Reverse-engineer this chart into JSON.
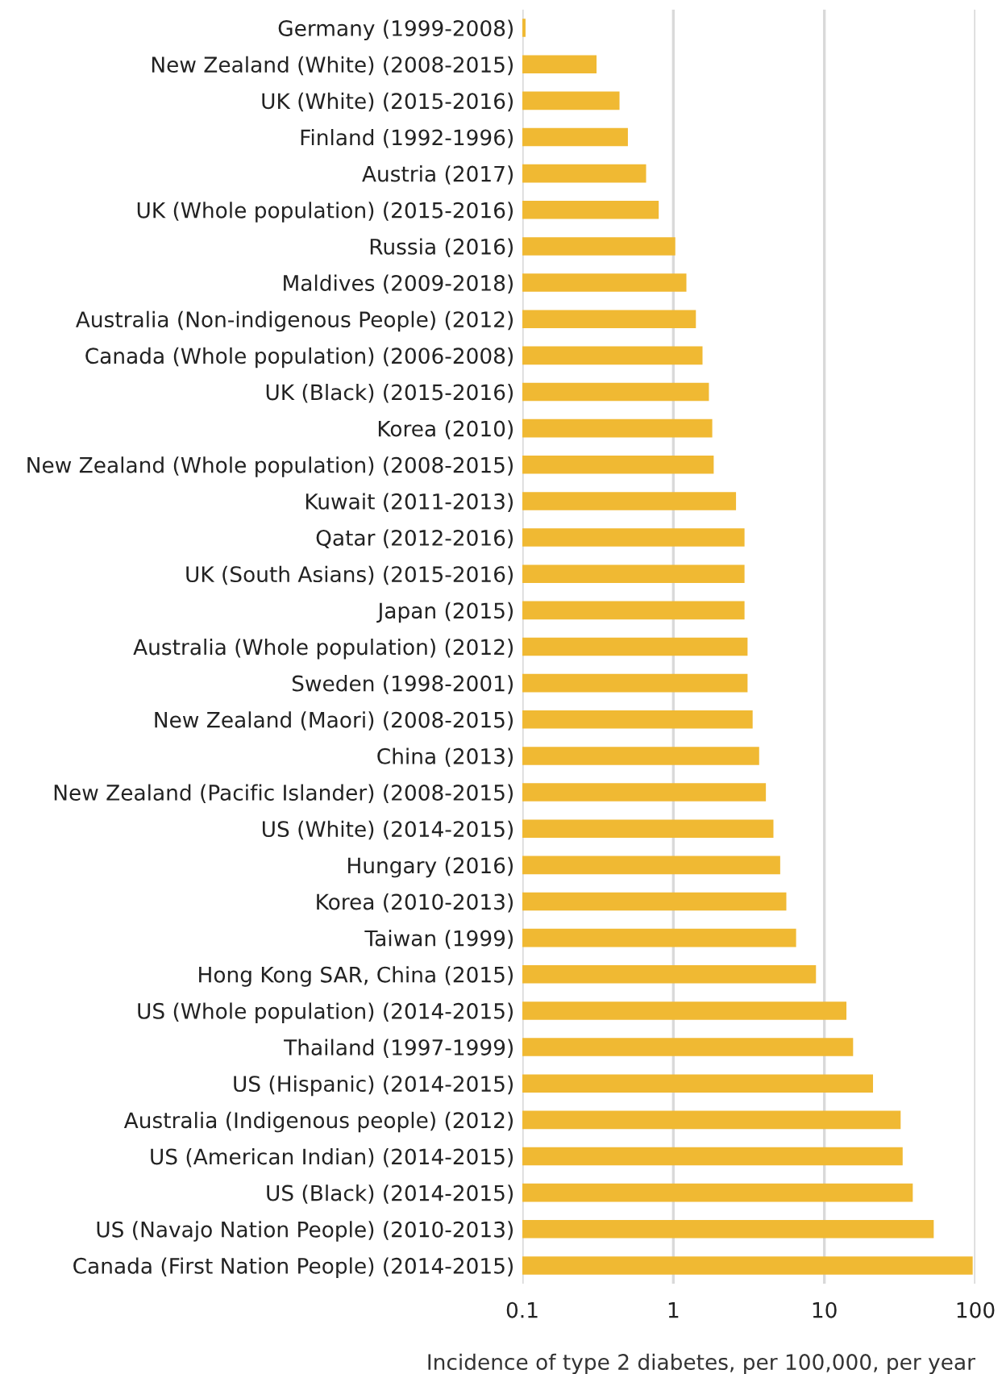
{
  "chart_data": {
    "type": "bar",
    "orientation": "horizontal",
    "xlabel": "Incidence of type 2 diabetes, per 100,000, per year",
    "categories": [
      "Germany (1999-2008)",
      "New Zealand (White) (2008-2015)",
      "UK (White) (2015-2016)",
      "Finland (1992-1996)",
      "Austria (2017)",
      "UK (Whole population) (2015-2016)",
      "Russia (2016)",
      "Maldives (2009-2018)",
      "Australia (Non-indigenous People) (2012)",
      "Canada (Whole population) (2006-2008)",
      "UK (Black) (2015-2016)",
      "Korea (2010)",
      "New Zealand (Whole population) (2008-2015)",
      "Kuwait (2011-2013)",
      "Qatar (2012-2016)",
      "UK (South Asians) (2015-2016)",
      "Japan (2015)",
      "Australia (Whole population) (2012)",
      "Sweden (1998-2001)",
      "New Zealand (Maori) (2008-2015)",
      "China (2013)",
      "New Zealand (Pacific Islander) (2008-2015)",
      "US (White) (2014-2015)",
      "Hungary (2016)",
      "Korea (2010-2013)",
      "Taiwan (1999)",
      "Hong Kong SAR, China (2015)",
      "US (Whole population) (2014-2015)",
      "Thailand (1997-1999)",
      "US (Hispanic) (2014-2015)",
      "Australia (Indigenous people) (2012)",
      "US (American Indian) (2014-2015)",
      "US (Black) (2014-2015)",
      "US (Navajo Nation People) (2010-2013)",
      "Canada (First Nation People) (2014-2015)"
    ],
    "values": [
      0.105,
      0.31,
      0.44,
      0.5,
      0.66,
      0.8,
      1.03,
      1.22,
      1.41,
      1.56,
      1.72,
      1.81,
      1.85,
      2.6,
      2.96,
      2.96,
      2.96,
      3.1,
      3.1,
      3.35,
      3.7,
      4.1,
      4.6,
      5.1,
      5.6,
      6.5,
      8.8,
      14,
      15.5,
      21,
      32,
      33,
      38.5,
      53,
      96
    ],
    "color": "#f0b933",
    "log": "x",
    "xlim": [
      0.1,
      100
    ],
    "xticks": [
      0.1,
      1,
      10,
      100
    ],
    "grid": "x"
  }
}
